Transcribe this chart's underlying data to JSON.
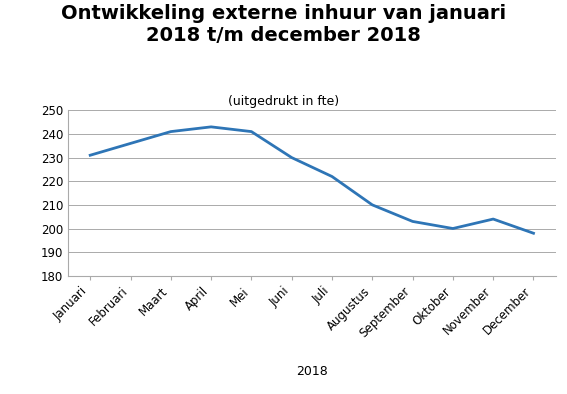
{
  "title_line1": "Ontwikkeling externe inhuur van januari",
  "title_line2": "2018 t/m december 2018",
  "subtitle": "(uitgedrukt in fte)",
  "xlabel": "2018",
  "months": [
    "Januari",
    "Februari",
    "Maart",
    "April",
    "Mei",
    "Juni",
    "Juli",
    "Augustus",
    "September",
    "Oktober",
    "November",
    "December"
  ],
  "values": [
    231,
    236,
    241,
    243,
    241,
    230,
    222,
    210,
    203,
    200,
    204,
    198
  ],
  "ylim": [
    180,
    250
  ],
  "yticks": [
    180,
    190,
    200,
    210,
    220,
    230,
    240,
    250
  ],
  "line_color": "#2E75B6",
  "line_width": 2.0,
  "grid_color": "#AAAAAA",
  "background_color": "#FFFFFF",
  "title_fontsize": 14,
  "subtitle_fontsize": 9,
  "tick_fontsize": 8.5,
  "xlabel_fontsize": 9
}
